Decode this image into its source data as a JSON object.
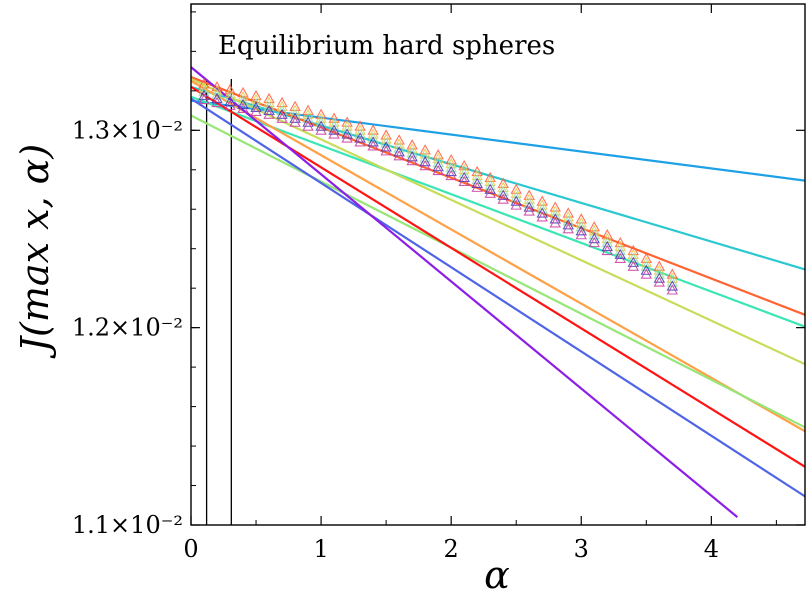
{
  "chart_data": {
    "type": "line",
    "title": "Equilibrium hard spheres",
    "xlabel": "α",
    "ylabel": "J(max x, α)",
    "xlim": [
      0,
      4.72
    ],
    "ylim": [
      0.011,
      0.01364
    ],
    "xticks": [
      0,
      1,
      2,
      3,
      4
    ],
    "xtick_labels": [
      "0",
      "1",
      "2",
      "3",
      "4"
    ],
    "yticks": [
      0.011,
      0.012,
      0.013
    ],
    "ytick_labels": [
      "1.1×10⁻²",
      "1.2×10⁻²",
      "1.3×10⁻²"
    ],
    "vertical_lines": [
      0.12,
      0.31
    ],
    "fit_lines": [
      {
        "color": "#1ea0e6",
        "x": [
          0,
          4.72
        ],
        "y": [
          0.01315,
          0.012745
        ]
      },
      {
        "color": "#2cc8d2",
        "x": [
          0,
          4.72
        ],
        "y": [
          0.01322,
          0.012295
        ]
      },
      {
        "color": "#3ce6b4",
        "x": [
          0,
          4.72
        ],
        "y": [
          0.01317,
          0.012005
        ]
      },
      {
        "color": "#ff6432",
        "x": [
          0,
          4.72
        ],
        "y": [
          0.01327,
          0.012065
        ]
      },
      {
        "color": "#c8dc5a",
        "x": [
          0,
          4.72
        ],
        "y": [
          0.01326,
          0.011815
        ]
      },
      {
        "color": "#ffa046",
        "x": [
          0,
          4.72
        ],
        "y": [
          0.01325,
          0.011475
        ]
      },
      {
        "color": "#96e678",
        "x": [
          0,
          4.72
        ],
        "y": [
          0.013075,
          0.011495
        ]
      },
      {
        "color": "#ff1414",
        "x": [
          0,
          4.72
        ],
        "y": [
          0.01322,
          0.011295
        ]
      },
      {
        "color": "#5064e6",
        "x": [
          0,
          4.72
        ],
        "y": [
          0.01316,
          0.011145
        ]
      },
      {
        "color": "#8c1ee6",
        "x": [
          0,
          4.2
        ],
        "y": [
          0.01332,
          0.01104
        ]
      }
    ],
    "marker_series": [
      {
        "color": "#ff5a3c",
        "x": [
          0.1,
          0.2,
          0.3,
          0.4,
          0.5,
          0.6,
          0.7,
          0.8,
          0.9,
          1.0,
          1.1,
          1.2,
          1.3,
          1.4,
          1.5,
          1.6,
          1.7,
          1.8,
          1.9,
          2.0,
          2.1,
          2.2,
          2.3,
          2.4,
          2.5,
          2.6,
          2.7,
          2.8,
          2.9,
          3.0,
          3.1,
          3.2,
          3.3,
          3.4,
          3.5,
          3.6,
          3.7
        ],
        "y": [
          0.013235,
          0.01322,
          0.013205,
          0.01319,
          0.013175,
          0.01316,
          0.01314,
          0.01312,
          0.0131,
          0.01308,
          0.01306,
          0.01304,
          0.01302,
          0.013,
          0.012975,
          0.01295,
          0.012925,
          0.0129,
          0.012875,
          0.01285,
          0.01282,
          0.01279,
          0.01276,
          0.01273,
          0.0127,
          0.01267,
          0.01264,
          0.01261,
          0.01258,
          0.01255,
          0.01251,
          0.01247,
          0.01243,
          0.01239,
          0.01235,
          0.01231,
          0.01227
        ]
      },
      {
        "color": "#e6c84a",
        "x": [
          0.1,
          0.2,
          0.3,
          0.4,
          0.5,
          0.6,
          0.7,
          0.8,
          0.9,
          1.0,
          1.1,
          1.2,
          1.3,
          1.4,
          1.5,
          1.6,
          1.7,
          1.8,
          1.9,
          2.0,
          2.1,
          2.2,
          2.3,
          2.4,
          2.5,
          2.6,
          2.7,
          2.8,
          2.9,
          3.0,
          3.1,
          3.2,
          3.3,
          3.4,
          3.5,
          3.6,
          3.7
        ],
        "y": [
          0.013215,
          0.0132,
          0.013185,
          0.01317,
          0.013155,
          0.01314,
          0.01312,
          0.0131,
          0.01308,
          0.01306,
          0.01304,
          0.01302,
          0.013,
          0.01298,
          0.012955,
          0.01293,
          0.012905,
          0.01288,
          0.012855,
          0.01283,
          0.0128,
          0.01277,
          0.01274,
          0.01271,
          0.01268,
          0.01265,
          0.01262,
          0.01259,
          0.01256,
          0.01253,
          0.01249,
          0.01245,
          0.01241,
          0.01237,
          0.01233,
          0.01229,
          0.01225
        ]
      },
      {
        "color": "#96dca0",
        "x": [
          0.1,
          0.2,
          0.3,
          0.4,
          0.5,
          0.6,
          0.7,
          0.8,
          0.9,
          1.0,
          1.1,
          1.2,
          1.3,
          1.4,
          1.5,
          1.6,
          1.7,
          1.8,
          1.9,
          2.0,
          2.1,
          2.2,
          2.3,
          2.4,
          2.5,
          2.6,
          2.7,
          2.8,
          2.9,
          3.0,
          3.1,
          3.2,
          3.3,
          3.4,
          3.5,
          3.6,
          3.7
        ],
        "y": [
          0.013195,
          0.01318,
          0.013165,
          0.01315,
          0.013135,
          0.01312,
          0.0131,
          0.01308,
          0.01306,
          0.01304,
          0.01302,
          0.013,
          0.01298,
          0.01296,
          0.012935,
          0.01291,
          0.012885,
          0.01286,
          0.012835,
          0.01281,
          0.01278,
          0.01275,
          0.01272,
          0.01269,
          0.01266,
          0.01263,
          0.0126,
          0.01257,
          0.01254,
          0.01251,
          0.01247,
          0.01243,
          0.01239,
          0.01235,
          0.01231,
          0.01227,
          0.01223
        ]
      },
      {
        "color": "#3c3cb4",
        "x": [
          0.1,
          0.2,
          0.3,
          0.4,
          0.5,
          0.6,
          0.7,
          0.8,
          0.9,
          1.0,
          1.1,
          1.2,
          1.3,
          1.4,
          1.5,
          1.6,
          1.7,
          1.8,
          1.9,
          2.0,
          2.1,
          2.2,
          2.3,
          2.4,
          2.5,
          2.6,
          2.7,
          2.8,
          2.9,
          3.0,
          3.1,
          3.2,
          3.3,
          3.4,
          3.5,
          3.6,
          3.7
        ],
        "y": [
          0.013175,
          0.01316,
          0.013145,
          0.01313,
          0.013115,
          0.0131,
          0.01308,
          0.01306,
          0.01304,
          0.01302,
          0.013,
          0.01298,
          0.01296,
          0.01294,
          0.012915,
          0.01289,
          0.012865,
          0.01284,
          0.012815,
          0.01279,
          0.01276,
          0.01273,
          0.0127,
          0.01267,
          0.01264,
          0.01261,
          0.01258,
          0.01255,
          0.01252,
          0.01249,
          0.01245,
          0.01241,
          0.01237,
          0.01233,
          0.01229,
          0.01225,
          0.01221
        ]
      },
      {
        "color": "#c83ca0",
        "x": [
          0.1,
          0.2,
          0.3,
          0.4,
          0.5,
          0.6,
          0.7,
          0.8,
          0.9,
          1.0,
          1.1,
          1.2,
          1.3,
          1.4,
          1.5,
          1.6,
          1.7,
          1.8,
          1.9,
          2.0,
          2.1,
          2.2,
          2.3,
          2.4,
          2.5,
          2.6,
          2.7,
          2.8,
          2.9,
          3.0,
          3.1,
          3.2,
          3.3,
          3.4,
          3.5,
          3.6,
          3.7
        ],
        "y": [
          0.013155,
          0.01314,
          0.013125,
          0.01311,
          0.013095,
          0.01308,
          0.01306,
          0.01304,
          0.01302,
          0.013,
          0.01298,
          0.01296,
          0.01294,
          0.01292,
          0.012895,
          0.01287,
          0.012845,
          0.01282,
          0.012795,
          0.01277,
          0.01274,
          0.01271,
          0.01268,
          0.01265,
          0.01262,
          0.01259,
          0.01256,
          0.01253,
          0.0125,
          0.01247,
          0.01243,
          0.01239,
          0.01235,
          0.01231,
          0.01227,
          0.01223,
          0.01219
        ]
      }
    ]
  }
}
